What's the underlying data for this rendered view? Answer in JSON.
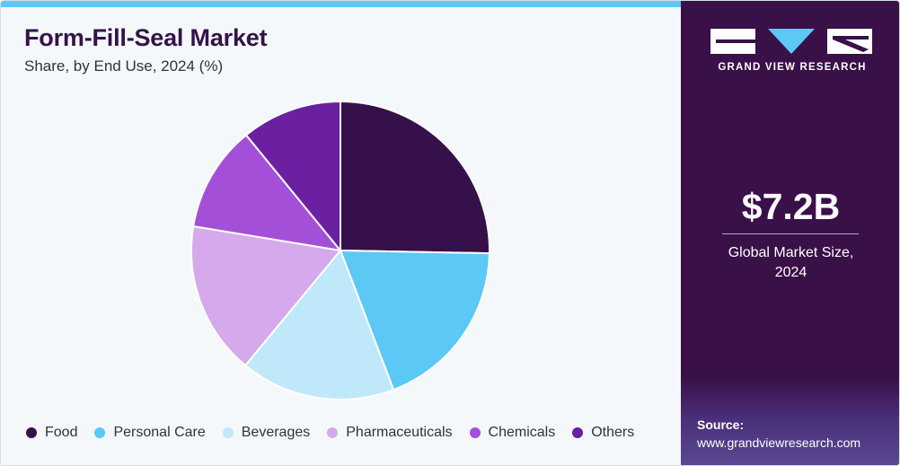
{
  "chart_data": {
    "type": "pie",
    "title": "Form-Fill-Seal Market",
    "subtitle": "Share, by End Use, 2024 (%)",
    "categories": [
      "Food",
      "Personal Care",
      "Beverages",
      "Pharmaceuticals",
      "Chemicals",
      "Others"
    ],
    "values": [
      25.3,
      18.9,
      16.8,
      16.6,
      11.5,
      10.9
    ],
    "colors": [
      "#35104a",
      "#5bc8f5",
      "#bfe9fa",
      "#d5a9ec",
      "#a44fd8",
      "#6a20a0"
    ],
    "legend_position": "bottom"
  },
  "sidebar": {
    "logo_text": "GRAND VIEW RESEARCH",
    "market_value": "$7.2B",
    "market_label_line1": "Global Market Size,",
    "market_label_line2": "2024",
    "source_label": "Source:",
    "source_url": "www.grandviewresearch.com"
  }
}
